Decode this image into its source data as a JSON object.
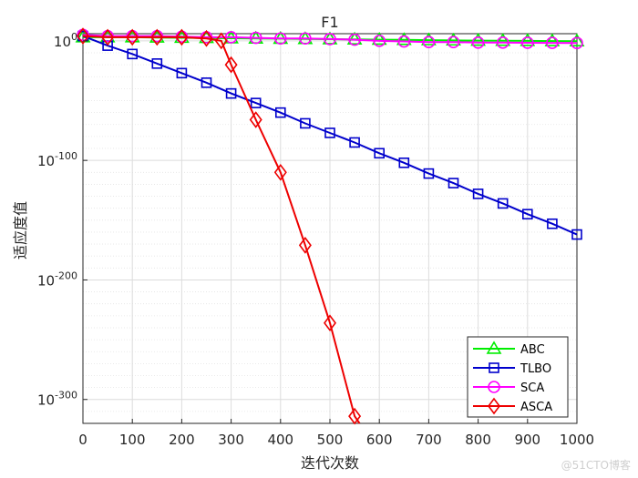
{
  "chart_data": {
    "type": "line",
    "title": "F1",
    "xlabel": "迭代次数",
    "ylabel": "适应度值",
    "xlim": [
      0,
      1000
    ],
    "ylim_exponent": [
      -320,
      6
    ],
    "y_scale": "log",
    "x_ticks": [
      0,
      100,
      200,
      300,
      400,
      500,
      600,
      700,
      800,
      900,
      1000
    ],
    "y_ticks": [
      {
        "exp": 0,
        "label": "0"
      },
      {
        "exp": -100,
        "label": "-100"
      },
      {
        "exp": -200,
        "label": "-200"
      },
      {
        "exp": -300,
        "label": "-300"
      }
    ],
    "y_tick_base": "10",
    "grid": true,
    "legend_position": "bottom-right",
    "series": [
      {
        "name": "ABC",
        "color": "#00ee00",
        "marker": "triangle",
        "x": [
          0,
          50,
          100,
          150,
          200,
          250,
          300,
          350,
          400,
          450,
          500,
          550,
          600,
          650,
          700,
          750,
          800,
          850,
          900,
          950,
          1000
        ],
        "log10_y": [
          3,
          3,
          3,
          2.8,
          2.6,
          2.4,
          2.2,
          2.0,
          1.8,
          1.6,
          1.4,
          1.2,
          1.0,
          0.8,
          0.6,
          0.4,
          0.2,
          0.1,
          0,
          -0.2,
          -0.3
        ]
      },
      {
        "name": "TLBO",
        "color": "#0000cc",
        "marker": "square",
        "x": [
          0,
          50,
          100,
          150,
          200,
          250,
          300,
          350,
          400,
          450,
          500,
          550,
          600,
          650,
          700,
          750,
          800,
          850,
          900,
          950,
          1000
        ],
        "log10_y": [
          4,
          -4,
          -11,
          -19,
          -27,
          -35,
          -44,
          -52,
          -60,
          -69,
          -77,
          -85,
          -94,
          -102,
          -111,
          -119,
          -128,
          -136,
          -145,
          -153,
          -162
        ]
      },
      {
        "name": "SCA",
        "color": "#ff00ff",
        "marker": "circle",
        "x": [
          0,
          50,
          100,
          150,
          200,
          250,
          300,
          350,
          400,
          450,
          500,
          550,
          600,
          650,
          700,
          750,
          800,
          850,
          900,
          950,
          1000
        ],
        "log10_y": [
          5,
          4,
          4,
          4,
          3.5,
          3,
          3,
          2.5,
          2,
          2,
          1.5,
          1,
          0,
          -0.5,
          -1,
          -1,
          -1.5,
          -1.5,
          -1.6,
          -1.7,
          -1.8
        ]
      },
      {
        "name": "ASCA",
        "color": "#ee0000",
        "marker": "diamond",
        "x": [
          0,
          50,
          100,
          150,
          200,
          250,
          280,
          300,
          350,
          400,
          450,
          500,
          550,
          560
        ],
        "log10_y": [
          4,
          3,
          3,
          3,
          3,
          2,
          0,
          -20,
          -66,
          -110,
          -171,
          -236,
          -314,
          -320
        ]
      }
    ]
  },
  "watermark": "@51CTO博客"
}
